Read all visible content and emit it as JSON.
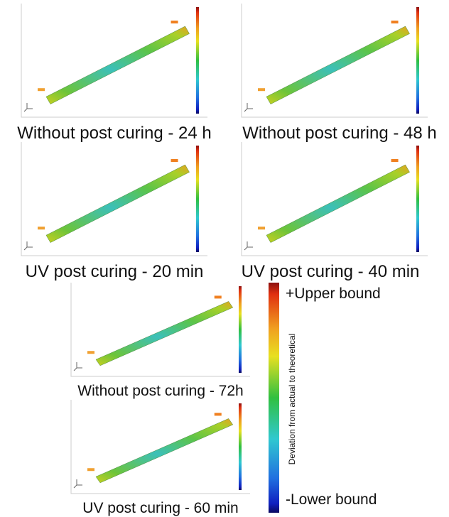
{
  "panels": [
    {
      "caption": "Without post curing - 24 h"
    },
    {
      "caption": "Without post curing - 48 h"
    },
    {
      "caption": "UV post curing - 20 min"
    },
    {
      "caption": "UV post curing - 40 min"
    },
    {
      "caption": "Without post curing - 72h"
    },
    {
      "caption": "UV post curing - 60 min"
    }
  ],
  "legend": {
    "upper": "+Upper bound",
    "lower": "-Lower bound",
    "axis_label": "Deviation from actual to theoretical"
  }
}
